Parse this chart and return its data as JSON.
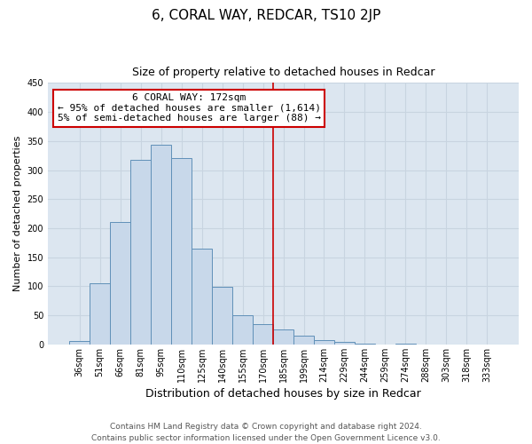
{
  "title": "6, CORAL WAY, REDCAR, TS10 2JP",
  "subtitle": "Size of property relative to detached houses in Redcar",
  "xlabel": "Distribution of detached houses by size in Redcar",
  "ylabel": "Number of detached properties",
  "bar_labels": [
    "36sqm",
    "51sqm",
    "66sqm",
    "81sqm",
    "95sqm",
    "110sqm",
    "125sqm",
    "140sqm",
    "155sqm",
    "170sqm",
    "185sqm",
    "199sqm",
    "214sqm",
    "229sqm",
    "244sqm",
    "259sqm",
    "274sqm",
    "288sqm",
    "303sqm",
    "318sqm",
    "333sqm"
  ],
  "bar_values": [
    6,
    106,
    210,
    318,
    343,
    320,
    165,
    99,
    51,
    35,
    26,
    15,
    8,
    4,
    2,
    0,
    1,
    0,
    0,
    0,
    0
  ],
  "bar_color": "#c8d8ea",
  "bar_edge_color": "#6090b8",
  "vline_x": 9.5,
  "vline_color": "#cc0000",
  "annotation_title": "6 CORAL WAY: 172sqm",
  "annotation_line1": "← 95% of detached houses are smaller (1,614)",
  "annotation_line2": "5% of semi-detached houses are larger (88) →",
  "annotation_box_facecolor": "#ffffff",
  "annotation_box_edgecolor": "#cc0000",
  "grid_color": "#c8d4e0",
  "plot_bg_color": "#dce6f0",
  "fig_bg_color": "#ffffff",
  "ylim": [
    0,
    450
  ],
  "yticks": [
    0,
    50,
    100,
    150,
    200,
    250,
    300,
    350,
    400,
    450
  ],
  "title_fontsize": 11,
  "subtitle_fontsize": 9,
  "xlabel_fontsize": 9,
  "ylabel_fontsize": 8,
  "tick_fontsize": 7,
  "annot_fontsize": 8,
  "footer_fontsize": 6.5,
  "footer_line1": "Contains HM Land Registry data © Crown copyright and database right 2024.",
  "footer_line2": "Contains public sector information licensed under the Open Government Licence v3.0."
}
